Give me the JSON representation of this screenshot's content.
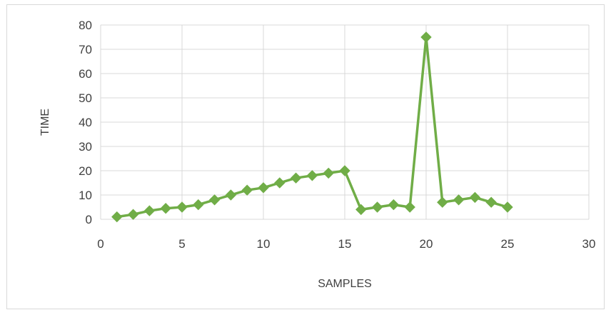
{
  "chart_data": {
    "type": "scatter",
    "title": "",
    "xlabel": "SAMPLES",
    "ylabel": "TIME",
    "xlim": [
      0,
      30
    ],
    "ylim": [
      0,
      80
    ],
    "xticks": [
      0,
      5,
      10,
      15,
      20,
      25,
      30
    ],
    "yticks": [
      0,
      10,
      20,
      30,
      40,
      50,
      60,
      70,
      80
    ],
    "grid": true,
    "legend": "none",
    "series": [
      {
        "color": "#70ad47",
        "marker": "diamond",
        "line": true,
        "x": [
          1,
          2,
          3,
          4,
          5,
          6,
          7,
          8,
          9,
          10,
          11,
          12,
          13,
          14,
          15,
          16,
          17,
          18,
          19,
          20,
          21,
          22,
          23,
          24,
          25
        ],
        "y": [
          1,
          2,
          3.5,
          4.5,
          5,
          6,
          8,
          10,
          12,
          13,
          15,
          17,
          18,
          19,
          20,
          4,
          5,
          6,
          5,
          75,
          7,
          8,
          9,
          7,
          5
        ]
      }
    ]
  }
}
